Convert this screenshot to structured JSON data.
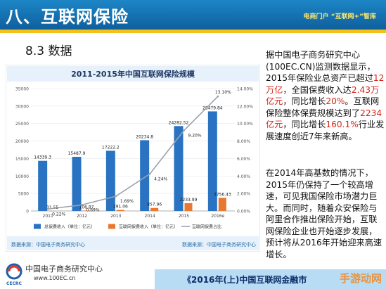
{
  "header": {
    "title": "八、互联网保险",
    "right_text": "电商门户 “互联网+”智库"
  },
  "section_title": "8.3 数据",
  "chart_data": {
    "type": "bar",
    "title": "2011-2015年中国互联网保险规模",
    "categories": [
      "2011",
      "2012",
      "2013",
      "2014",
      "2015",
      "2016e"
    ],
    "series": [
      {
        "name": "总保费收入（单位：亿元）",
        "type": "bar",
        "axis": "left",
        "color": "#2a73c2",
        "values": [
          14339.3,
          15487.9,
          17222.2,
          20234.8,
          24282.52,
          28479.84
        ],
        "labels": [
          "14339.3",
          "15487.9",
          "17222.2",
          "20234.8",
          "24282.52",
          "28479.84"
        ]
      },
      {
        "name": "互联网保费收入（单位：亿元）",
        "type": "bar",
        "axis": "left",
        "color": "#e8772f",
        "values": [
          31.55,
          106.87,
          291.06,
          857.96,
          2233.99,
          3756.43
        ],
        "labels": [
          "31.55",
          "106.87",
          "291.06",
          "857.96",
          "2233.99",
          "3756.43"
        ]
      },
      {
        "name": "互联网保费占比",
        "type": "line",
        "axis": "right",
        "color": "#9aa3ad",
        "values": [
          0.22,
          0.69,
          1.69,
          4.24,
          9.2,
          13.1
        ],
        "labels": [
          "0.22%",
          "0.69%",
          "1.69%",
          "4.24%",
          "9.20%",
          "13.10%"
        ]
      }
    ],
    "ylim": [
      0,
      35000
    ],
    "yticks": [
      "0",
      "5000",
      "10000",
      "15000",
      "20000",
      "25000",
      "30000",
      "35000"
    ],
    "y2lim": [
      0,
      14
    ],
    "y2ticks": [
      "0.00%",
      "2.00%",
      "4.00%",
      "6.00%",
      "8.00%",
      "10.00%",
      "12.00%",
      "14.00%"
    ],
    "legend_position": "bottom",
    "source_left": "数据来源：中国电子商务研究中心",
    "source_right": "数据来源：中国电子商务研究中心"
  },
  "text": {
    "p1": {
      "a": "据中国电子商务研究中心(100EC.CN)监测数据显示，2015年保险业总资产已超过",
      "b": "12万亿",
      "c": "，全国保费收入达",
      "d": "2.43万亿元",
      "e": "，同比增长",
      "f": "20%",
      "g": "。互联网保险整体保费规模达到了",
      "h": "2234亿元",
      "i": "，同比增长",
      "j": "160.1%",
      "k": "行业发展速度创近7年来新高。"
    },
    "p2": "在2014年高基数的情况下，2015年仍保持了一个较高增速，可见我国保险市场潜力巨大。而同时，随着众安保险与阿里合作推出保险开始，互联网保险企业也开始逐步发展，预计将从2016年开始迎来高速增长。"
  },
  "footer": {
    "logo_name": "中国电子商务研究中心",
    "logo_url": "www.100EC.cn",
    "logo_abbr": "CECRC",
    "report_title": "《2016年(上)中国互联网金融市",
    "watermark": "手游动网"
  }
}
